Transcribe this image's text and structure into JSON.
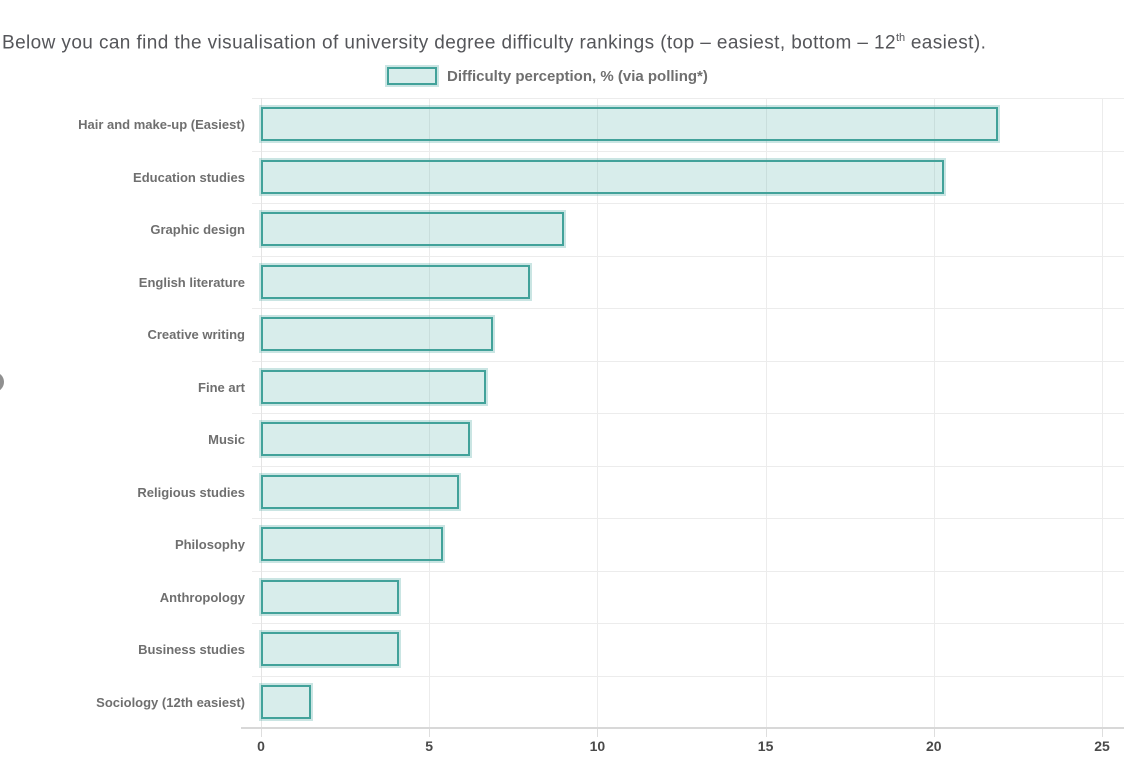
{
  "page": {
    "heading": {
      "prefix": "Below you can find the visualisation of university degree difficulty rankings (top – easiest, bottom – 12",
      "superscript": "th",
      "suffix": " easiest)."
    }
  },
  "chart_data": {
    "type": "bar",
    "orientation": "horizontal",
    "title": "",
    "legend": "Difficulty perception, % (via polling*)",
    "legend_position": "top",
    "categories": [
      "Hair and make-up (Easiest)",
      "Education studies",
      "Graphic design",
      "English literature",
      "Creative writing",
      "Fine art",
      "Music",
      "Religious studies",
      "Philosophy",
      "Anthropology",
      "Business studies",
      "Sociology (12th easiest)"
    ],
    "values": [
      21.9,
      20.3,
      9,
      8,
      6.9,
      6.7,
      6.2,
      5.9,
      5.4,
      4.1,
      4.1,
      1.5
    ],
    "xlabel": "",
    "ylabel": "",
    "xlim": [
      0,
      25
    ],
    "x_ticks": [
      0,
      5,
      10,
      15,
      20,
      25
    ],
    "grid": true,
    "colors": {
      "bar_fill": "#d6ebe7",
      "bar_border": "#42a29a",
      "grid_line": "#ececec",
      "axis_line": "#d8d8d8",
      "category_text": "#6f6f6f",
      "tick_text": "#4a4a4a",
      "title_text": "#55565a"
    }
  }
}
